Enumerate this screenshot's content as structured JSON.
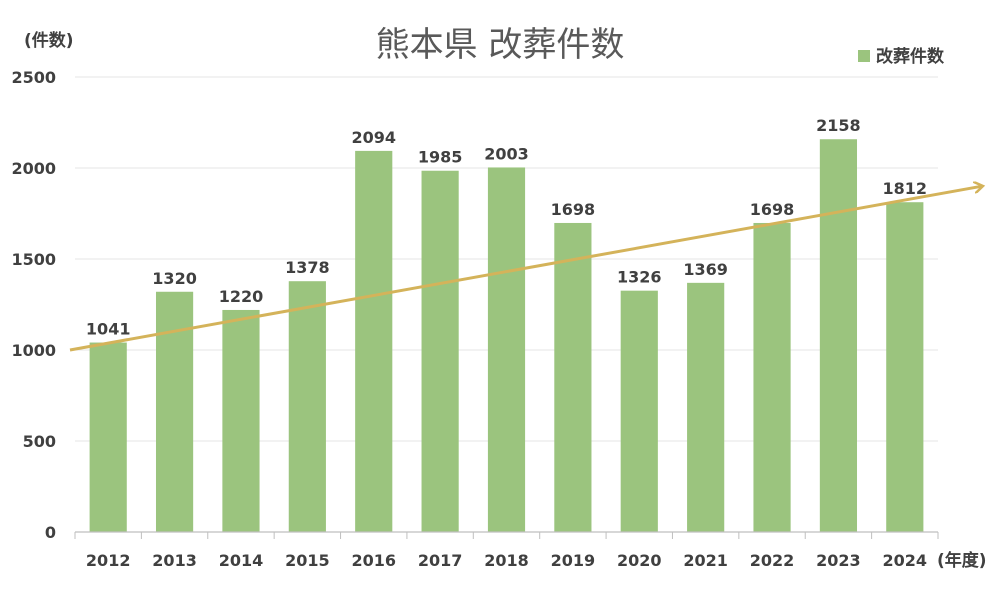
{
  "chart_data": {
    "type": "bar",
    "title": "熊本県 改葬件数",
    "ylabel": "(件数)",
    "xlabel": "(年度)",
    "categories": [
      "2012",
      "2013",
      "2014",
      "2015",
      "2016",
      "2017",
      "2018",
      "2019",
      "2020",
      "2021",
      "2022",
      "2023",
      "2024"
    ],
    "series": [
      {
        "name": "改葬件数",
        "values": [
          1041,
          1320,
          1220,
          1378,
          2094,
          1985,
          2003,
          1698,
          1326,
          1369,
          1698,
          2158,
          1812
        ],
        "color": "#9bc47e"
      }
    ],
    "ylim": [
      0,
      2500
    ],
    "yticks": [
      0,
      500,
      1000,
      1500,
      2000,
      2500
    ],
    "grid": true,
    "legend_position": "top-right",
    "data_labels": true,
    "trend_arrow": {
      "from": 1000,
      "to": 1900,
      "color": "#d4b35a"
    }
  }
}
